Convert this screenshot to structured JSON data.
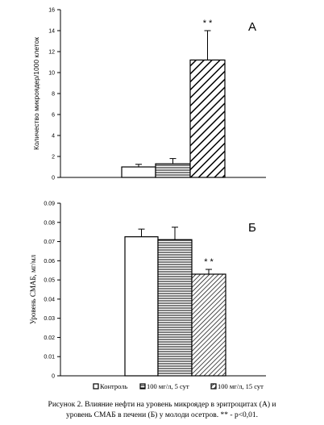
{
  "chart_data": [
    {
      "type": "bar",
      "panel_label": "А",
      "ylabel": "Количество микроядер/1000 клеток",
      "ylim": [
        0,
        16
      ],
      "yticks": [
        0,
        2,
        4,
        6,
        8,
        10,
        12,
        14,
        16
      ],
      "ytick_labels": [
        "0",
        "2",
        "4",
        "6",
        "8",
        "10",
        "12",
        "14",
        "16"
      ],
      "series": [
        {
          "name": "Контроль",
          "value": 1.0,
          "error": 0.25,
          "significance": ""
        },
        {
          "name": "100 мг/л, 5 сут",
          "value": 1.3,
          "error": 0.5,
          "significance": ""
        },
        {
          "name": "100 мг/л, 15 сут",
          "value": 11.2,
          "error": 2.8,
          "significance": "* *"
        }
      ],
      "grid": false
    },
    {
      "type": "bar",
      "panel_label": "Б",
      "ylabel": "Уровень СМАБ, мг/мл",
      "ylim": [
        0,
        0.09
      ],
      "yticks": [
        0,
        0.01,
        0.02,
        0.03,
        0.04,
        0.05,
        0.06,
        0.07,
        0.08,
        0.09
      ],
      "ytick_labels": [
        "0",
        "0.01",
        "0.02",
        "0.03",
        "0.04",
        "0.05",
        "0.06",
        "0.07",
        "0.08",
        "0.09"
      ],
      "series": [
        {
          "name": "Контроль",
          "value": 0.0725,
          "error": 0.004,
          "significance": ""
        },
        {
          "name": "100 мг/л, 5 сут",
          "value": 0.071,
          "error": 0.0065,
          "significance": ""
        },
        {
          "name": "100 мг/л, 15 сут",
          "value": 0.053,
          "error": 0.0025,
          "significance": "* *"
        }
      ],
      "grid": false
    }
  ],
  "legend": {
    "placement": "bottom",
    "items": [
      {
        "label": "Контроль",
        "pattern": "white"
      },
      {
        "label": "100 мг/л, 5 сут",
        "pattern": "horizontal-lines"
      },
      {
        "label": "100 мг/л, 15 сут",
        "pattern": "diagonal-lines"
      }
    ]
  },
  "caption": {
    "line1": "Рисунок 2. Влияние нефти на уровень микроядер в эритроцитах (А) и",
    "line2": "уровень СМАБ в печени (Б) у молоди осетров. ** - p<0,01."
  }
}
